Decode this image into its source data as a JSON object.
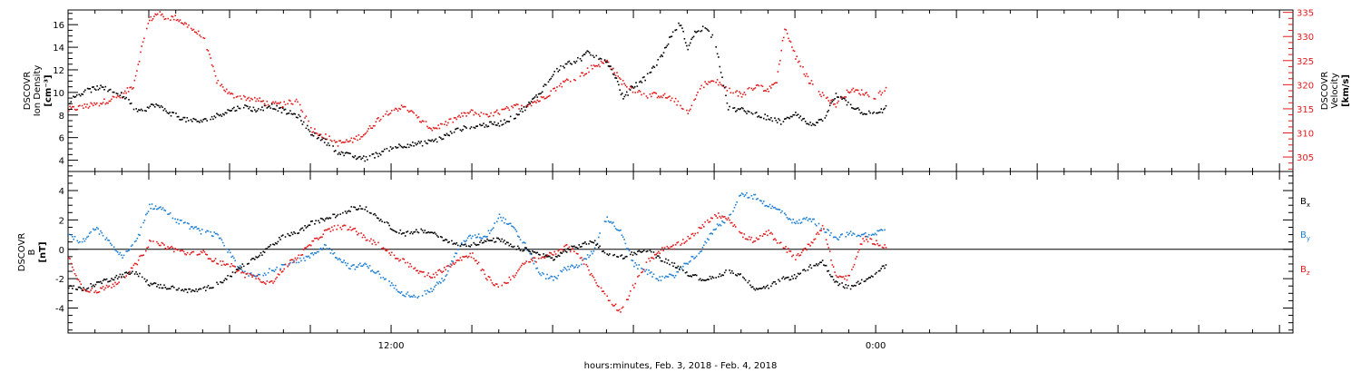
{
  "colors": {
    "black": "#000000",
    "blue": "#1e7fd4",
    "red": "#e31a1c",
    "axis": "#000000"
  },
  "chart_data": [
    {
      "type": "scatter",
      "panel": "top",
      "ylabel": [
        "DSCOVR",
        "Ion Density",
        "[cm⁻³]"
      ],
      "y2label": [
        "DSCOVR",
        "Velocity",
        "[km/s]"
      ],
      "ylim": [
        3,
        17.3
      ],
      "y2lim": [
        302,
        335.5
      ],
      "yticks": [
        4,
        6,
        8,
        10,
        12,
        14,
        16
      ],
      "y2ticks": [
        305,
        310,
        315,
        320,
        325,
        330,
        335
      ],
      "series": [
        {
          "name": "Ion Density",
          "color": "black",
          "axis": "left",
          "t": [
            0,
            0.3,
            0.7,
            1.1,
            1.5,
            2.0,
            2.6,
            3.2,
            3.8,
            4.4,
            5.0,
            5.5,
            6.0,
            6.5,
            7.0,
            7.5,
            8.0,
            8.5,
            9.0,
            9.5,
            10.0,
            10.5,
            11.0,
            11.5,
            12.0,
            12.5,
            13.0,
            13.5,
            14.0,
            14.5,
            15.0,
            15.5,
            16.0,
            16.5,
            17.0,
            17.5,
            18.0,
            18.5,
            19.0,
            19.3,
            19.6,
            20.0,
            20.3,
            20.6,
            20.9,
            21.2,
            21.5,
            21.8,
            22.1,
            22.4,
            22.7,
            23.0,
            23.3,
            23.6,
            24.0,
            24.5,
            25.0,
            25.5,
            26.0,
            26.5,
            27.0,
            27.5,
            28.0,
            28.5,
            29.0,
            29.5,
            30.0,
            30.4
          ],
          "v": [
            9.2,
            9.8,
            10.2,
            10.5,
            10.3,
            9.8,
            8.3,
            9.0,
            8.2,
            7.6,
            7.5,
            8.0,
            8.5,
            8.8,
            8.5,
            8.9,
            8.4,
            8.0,
            6.5,
            5.8,
            4.8,
            4.4,
            4.2,
            4.6,
            5.2,
            5.4,
            5.5,
            5.7,
            6.2,
            6.8,
            7.0,
            7.2,
            7.3,
            7.8,
            8.8,
            10.0,
            11.8,
            12.6,
            13.0,
            13.6,
            13.2,
            12.8,
            11.5,
            9.5,
            10.4,
            11.0,
            11.5,
            12.5,
            13.6,
            15.2,
            16.2,
            14.0,
            15.5,
            15.8,
            14.8,
            8.6,
            8.5,
            8.2,
            7.8,
            7.4,
            8.3,
            7.2,
            7.5,
            9.8,
            9.0,
            8.3,
            8.1,
            8.8
          ]
        },
        {
          "name": "Velocity",
          "color": "red",
          "axis": "right",
          "t": [
            0,
            0.5,
            1.0,
            1.5,
            2.0,
            2.4,
            2.8,
            3.0,
            3.3,
            3.6,
            4.0,
            4.5,
            5.0,
            5.5,
            6.0,
            6.5,
            7.0,
            7.5,
            8.0,
            8.5,
            9.0,
            9.5,
            10.0,
            10.5,
            11.0,
            11.5,
            12.0,
            12.5,
            13.0,
            13.5,
            14.0,
            14.5,
            15.0,
            15.5,
            16.0,
            16.5,
            17.0,
            17.5,
            18.0,
            18.5,
            19.0,
            19.5,
            20.0,
            20.5,
            21.0,
            21.5,
            22.0,
            22.5,
            23.0,
            23.5,
            24.0,
            24.5,
            25.0,
            25.5,
            26.0,
            26.3,
            26.6,
            27.0,
            27.5,
            28.0,
            28.5,
            29.0,
            29.5,
            30.0,
            30.4
          ],
          "v": [
            315,
            315.5,
            316,
            317,
            318,
            320,
            330,
            333.5,
            335,
            334,
            334,
            332,
            330,
            321,
            318,
            317.5,
            317,
            316,
            316,
            317,
            311,
            309.5,
            308,
            308.5,
            310,
            313,
            315,
            315.5,
            313,
            311,
            312,
            313.5,
            314.5,
            313.5,
            314.5,
            315.5,
            316,
            317,
            319,
            321,
            322,
            324,
            325,
            321,
            319,
            318,
            318,
            317,
            314,
            320,
            321,
            319,
            318,
            320,
            319,
            321,
            332,
            326,
            321,
            318,
            316,
            319,
            318.5,
            317.5,
            320
          ]
        }
      ]
    },
    {
      "type": "scatter",
      "panel": "bottom",
      "ylabel": [
        "DSCOVR",
        "B",
        "[nT]"
      ],
      "ylim": [
        -5.7,
        5.3
      ],
      "yticks": [
        -4,
        -2,
        0,
        2,
        4
      ],
      "zero_line": true,
      "series": [
        {
          "name": "Bx",
          "color": "black",
          "t": [
            0,
            0.5,
            1.0,
            1.5,
            2.0,
            2.5,
            3.0,
            3.5,
            4.0,
            4.5,
            5.0,
            5.5,
            6.0,
            6.5,
            7.0,
            7.5,
            8.0,
            8.5,
            9.0,
            9.5,
            10.0,
            10.5,
            11.0,
            11.5,
            12.0,
            12.5,
            13.0,
            13.5,
            14.0,
            14.5,
            15.0,
            15.5,
            16.0,
            16.5,
            17.0,
            17.5,
            18.0,
            18.5,
            19.0,
            19.5,
            20.0,
            20.5,
            21.0,
            21.5,
            22.0,
            22.5,
            23.0,
            23.5,
            24.0,
            24.5,
            25.0,
            25.5,
            26.0,
            26.5,
            27.0,
            27.5,
            28.0,
            28.5,
            29.0,
            29.5,
            30.0,
            30.4
          ],
          "v": [
            -2.5,
            -2.7,
            -2.3,
            -2.0,
            -1.7,
            -1.5,
            -2.3,
            -2.5,
            -2.6,
            -2.8,
            -2.7,
            -2.3,
            -1.8,
            -1.0,
            -0.5,
            0.2,
            1.0,
            1.2,
            1.8,
            2.1,
            2.4,
            2.8,
            2.9,
            2.2,
            1.5,
            1.1,
            1.3,
            1.2,
            0.7,
            0.3,
            0.4,
            0.6,
            0.7,
            0.2,
            0.0,
            -0.3,
            -0.6,
            0.0,
            0.3,
            0.6,
            -0.4,
            -0.5,
            -0.2,
            0.0,
            -0.6,
            -1.0,
            -1.6,
            -2.0,
            -1.9,
            -1.4,
            -1.8,
            -2.6,
            -2.5,
            -2.0,
            -1.8,
            -1.2,
            -0.8,
            -2.2,
            -2.6,
            -2.1,
            -1.5,
            -1.0
          ]
        },
        {
          "name": "By",
          "color": "blue",
          "t": [
            0,
            0.5,
            1.0,
            1.5,
            2.0,
            2.5,
            3.0,
            3.5,
            4.0,
            4.5,
            5.0,
            5.5,
            6.0,
            6.5,
            7.0,
            7.5,
            8.0,
            8.5,
            9.0,
            9.5,
            10.0,
            10.5,
            11.0,
            11.5,
            12.0,
            12.5,
            13.0,
            13.5,
            14.0,
            14.5,
            15.0,
            15.5,
            16.0,
            16.5,
            17.0,
            17.5,
            18.0,
            18.5,
            19.0,
            19.5,
            20.0,
            20.5,
            21.0,
            21.5,
            22.0,
            22.5,
            23.0,
            23.5,
            24.0,
            24.5,
            25.0,
            25.5,
            26.0,
            26.5,
            27.0,
            27.5,
            28.0,
            28.5,
            29.0,
            29.5,
            30.0,
            30.4
          ],
          "v": [
            1.0,
            0.5,
            1.5,
            0.5,
            -0.5,
            0.5,
            3.0,
            2.8,
            2.0,
            1.6,
            1.2,
            1.0,
            -0.3,
            -1.6,
            -1.8,
            -1.4,
            -1.0,
            -0.8,
            -0.4,
            0.3,
            -0.5,
            -1.2,
            -1.0,
            -1.6,
            -2.4,
            -3.0,
            -3.1,
            -2.7,
            -1.8,
            0.2,
            1.0,
            0.9,
            2.3,
            1.5,
            0.2,
            -1.6,
            -2.0,
            -1.2,
            -1.0,
            0.0,
            2.2,
            1.2,
            -1.0,
            -1.5,
            -2.0,
            -1.7,
            -0.8,
            0.0,
            1.5,
            2.2,
            3.8,
            3.6,
            3.0,
            2.6,
            1.8,
            2.2,
            1.5,
            0.8,
            1.1,
            1.0,
            1.2,
            1.4
          ]
        },
        {
          "name": "Bz",
          "color": "red",
          "t": [
            0,
            0.5,
            1.0,
            1.5,
            2.0,
            2.5,
            3.0,
            3.5,
            4.0,
            4.5,
            5.0,
            5.5,
            6.0,
            6.5,
            7.0,
            7.5,
            8.0,
            8.5,
            9.0,
            9.5,
            10.0,
            10.5,
            11.0,
            11.5,
            12.0,
            12.5,
            13.0,
            13.5,
            14.0,
            14.5,
            15.0,
            15.5,
            16.0,
            16.5,
            17.0,
            17.5,
            18.0,
            18.5,
            19.0,
            19.5,
            20.0,
            20.5,
            21.0,
            21.5,
            22.0,
            22.5,
            23.0,
            23.5,
            24.0,
            24.5,
            25.0,
            25.5,
            26.0,
            26.5,
            27.0,
            27.5,
            28.0,
            28.5,
            29.0,
            29.5,
            30.0,
            30.4
          ],
          "v": [
            -0.5,
            -2.6,
            -2.8,
            -2.5,
            -2.0,
            -1.0,
            0.5,
            0.3,
            0.0,
            -0.3,
            -0.2,
            -0.8,
            -1.0,
            -1.7,
            -1.9,
            -2.3,
            -1.2,
            -0.5,
            0.4,
            1.2,
            1.6,
            1.5,
            0.8,
            0.4,
            -0.3,
            -0.8,
            -1.5,
            -1.8,
            -1.2,
            -0.6,
            -0.3,
            -1.8,
            -2.6,
            -1.8,
            -0.8,
            -0.6,
            -0.2,
            0.2,
            -0.4,
            -2.0,
            -3.2,
            -4.2,
            -2.4,
            -0.8,
            0.0,
            0.2,
            0.8,
            1.5,
            2.4,
            2.2,
            1.0,
            0.6,
            1.2,
            0.3,
            -0.5,
            0.3,
            1.6,
            -1.8,
            -1.9,
            0.8,
            0.5,
            0.2
          ]
        }
      ],
      "legend": [
        {
          "text": "B",
          "sub": "x",
          "color": "black"
        },
        {
          "text": "B",
          "sub": "y",
          "color": "blue"
        },
        {
          "text": "B",
          "sub": "z",
          "color": "red"
        }
      ]
    }
  ],
  "x_axis": {
    "xlim": [
      0,
      45.5
    ],
    "major_every": 3,
    "minor_every": 1,
    "labels": [
      {
        "t": 12,
        "text": "12:00"
      },
      {
        "t": 30,
        "text": "0:00"
      }
    ],
    "title": "hours:minutes, Feb.  3, 2018 - Feb.  4, 2018"
  }
}
